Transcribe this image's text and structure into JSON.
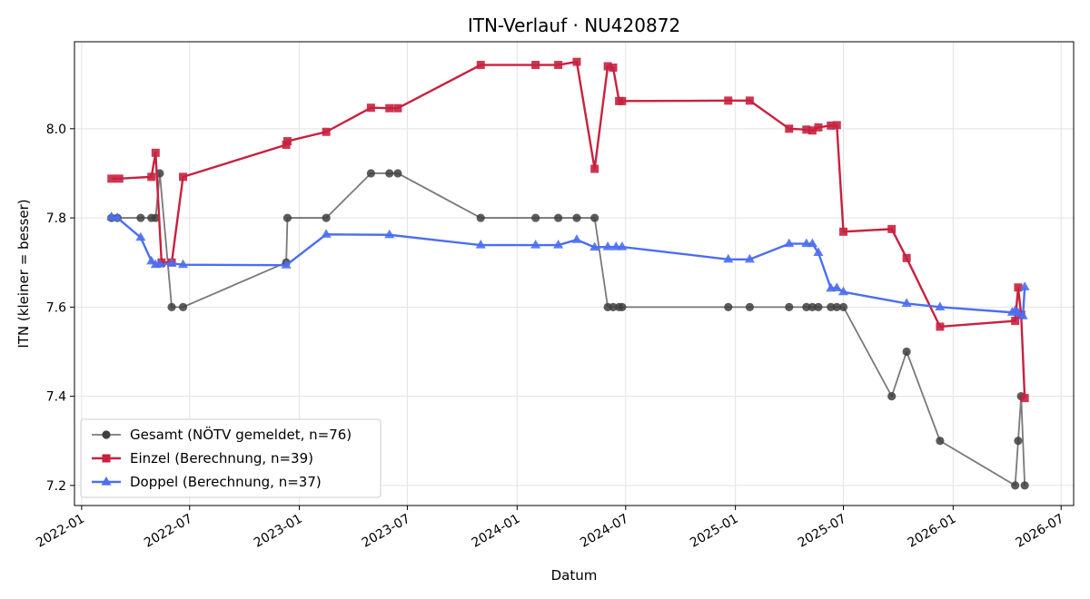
{
  "chart_data": {
    "type": "line",
    "title": "ITN-Verlauf · NU420872",
    "xlabel": "Datum",
    "ylabel": "ITN  (kleiner = besser)",
    "x_type": "date",
    "xlim": [
      "2021-12-20",
      "2026-07-22"
    ],
    "ylim": [
      7.155,
      8.195
    ],
    "x_ticks": [
      "2022-01-01",
      "2022-07-01",
      "2023-01-01",
      "2023-07-01",
      "2024-01-01",
      "2024-07-01",
      "2025-01-01",
      "2025-07-01",
      "2026-01-01",
      "2026-07-01"
    ],
    "x_tick_labels": [
      "2022-01",
      "2022-07",
      "2023-01",
      "2023-07",
      "2024-01",
      "2024-07",
      "2025-01",
      "2025-07",
      "2026-01",
      "2026-07"
    ],
    "y_ticks": [
      7.2,
      7.4,
      7.6,
      7.8,
      8.0
    ],
    "y_tick_labels": [
      "7.2",
      "7.4",
      "7.6",
      "7.8",
      "8.0"
    ],
    "grid": true,
    "legend_position": "lower-left",
    "series": [
      {
        "name": "Gesamt (NÖTV gemeldet, n=76)",
        "color": "#404040",
        "marker": "circle",
        "x": [
          "2022-02-20",
          "2022-03-02",
          "2022-04-10",
          "2022-04-28",
          "2022-05-05",
          "2022-05-12",
          "2022-06-01",
          "2022-06-20",
          "2022-12-10",
          "2022-12-12",
          "2023-02-15",
          "2023-05-01",
          "2023-06-01",
          "2023-06-15",
          "2023-11-01",
          "2024-02-01",
          "2024-03-10",
          "2024-04-10",
          "2024-05-10",
          "2024-06-01",
          "2024-06-10",
          "2024-06-20",
          "2024-06-25",
          "2024-12-20",
          "2025-01-25",
          "2025-04-01",
          "2025-04-30",
          "2025-05-10",
          "2025-05-20",
          "2025-06-10",
          "2025-06-20",
          "2025-07-01",
          "2025-09-20",
          "2025-10-15",
          "2025-12-10",
          "2026-04-15",
          "2026-04-20",
          "2026-04-25",
          "2026-05-01"
        ],
        "y": [
          7.8,
          7.8,
          7.8,
          7.8,
          7.8,
          7.9,
          7.6,
          7.6,
          7.7,
          7.8,
          7.8,
          7.9,
          7.9,
          7.9,
          7.8,
          7.8,
          7.8,
          7.8,
          7.8,
          7.6,
          7.6,
          7.6,
          7.6,
          7.6,
          7.6,
          7.6,
          7.6,
          7.6,
          7.6,
          7.6,
          7.6,
          7.6,
          7.4,
          7.5,
          7.3,
          7.2,
          7.3,
          7.4,
          7.2
        ]
      },
      {
        "name": "Einzel (Berechnung, n=39)",
        "color": "#c8213f",
        "marker": "square",
        "x": [
          "2022-02-20",
          "2022-03-05",
          "2022-04-28",
          "2022-05-05",
          "2022-05-15",
          "2022-06-01",
          "2022-06-20",
          "2022-12-10",
          "2022-12-12",
          "2023-02-15",
          "2023-05-01",
          "2023-06-01",
          "2023-06-15",
          "2023-11-01",
          "2024-02-01",
          "2024-03-10",
          "2024-04-10",
          "2024-05-10",
          "2024-06-01",
          "2024-06-10",
          "2024-06-20",
          "2024-06-25",
          "2024-12-20",
          "2025-01-25",
          "2025-04-01",
          "2025-04-30",
          "2025-05-10",
          "2025-05-20",
          "2025-06-10",
          "2025-06-20",
          "2025-07-01",
          "2025-09-20",
          "2025-10-15",
          "2025-12-10",
          "2026-04-15",
          "2026-04-20",
          "2026-04-25",
          "2026-05-01"
        ],
        "y": [
          7.888,
          7.888,
          7.892,
          7.946,
          7.7,
          7.7,
          7.892,
          7.964,
          7.972,
          7.993,
          8.047,
          8.046,
          8.046,
          8.143,
          8.143,
          8.143,
          8.15,
          7.91,
          8.14,
          8.137,
          8.062,
          8.062,
          8.063,
          8.063,
          8.0,
          7.998,
          7.996,
          8.003,
          8.007,
          8.008,
          7.769,
          7.775,
          7.71,
          7.556,
          7.569,
          7.644,
          7.583,
          7.396
        ]
      },
      {
        "name": "Doppel (Berechnung, n=37)",
        "color": "#4c6ef0",
        "marker": "triangle",
        "x": [
          "2022-02-20",
          "2022-03-02",
          "2022-04-10",
          "2022-04-28",
          "2022-05-05",
          "2022-05-12",
          "2022-06-01",
          "2022-06-20",
          "2022-12-10",
          "2023-02-15",
          "2023-06-01",
          "2023-11-01",
          "2024-02-01",
          "2024-03-10",
          "2024-04-10",
          "2024-05-10",
          "2024-06-01",
          "2024-06-15",
          "2024-06-25",
          "2024-12-20",
          "2025-01-25",
          "2025-04-01",
          "2025-04-30",
          "2025-05-10",
          "2025-05-20",
          "2025-06-10",
          "2025-06-20",
          "2025-07-01",
          "2025-10-15",
          "2025-12-10",
          "2026-04-10",
          "2026-04-15",
          "2026-04-20",
          "2026-04-28",
          "2026-05-01"
        ],
        "y": [
          7.802,
          7.8,
          7.756,
          7.703,
          7.695,
          7.696,
          7.698,
          7.695,
          7.694,
          7.763,
          7.762,
          7.739,
          7.739,
          7.739,
          7.751,
          7.734,
          7.735,
          7.735,
          7.735,
          7.707,
          7.707,
          7.742,
          7.742,
          7.742,
          7.722,
          7.642,
          7.643,
          7.634,
          7.608,
          7.6,
          7.588,
          7.592,
          7.587,
          7.58,
          7.645
        ]
      }
    ]
  }
}
